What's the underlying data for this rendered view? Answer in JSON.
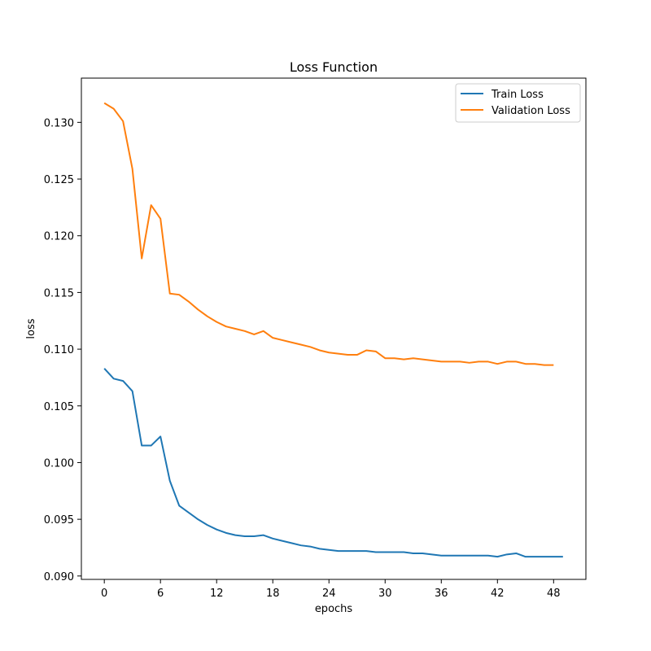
{
  "chart_data": {
    "type": "line",
    "title": "Loss Function",
    "xlabel": "epochs",
    "ylabel": "loss",
    "xlim": [
      -2.45,
      51.45
    ],
    "ylim": [
      0.0897,
      0.1339
    ],
    "xticks": [
      0,
      6,
      12,
      18,
      24,
      30,
      36,
      42,
      48
    ],
    "yticks": [
      0.09,
      0.095,
      0.1,
      0.105,
      0.11,
      0.115,
      0.12,
      0.125,
      0.13
    ],
    "ytick_labels": [
      "0.090",
      "0.095",
      "0.100",
      "0.105",
      "0.110",
      "0.115",
      "0.120",
      "0.125",
      "0.130"
    ],
    "grid": false,
    "legend_position": "top-right",
    "series": [
      {
        "name": "Train Loss",
        "color": "#1f77b4",
        "x": [
          0,
          1,
          2,
          3,
          4,
          5,
          6,
          7,
          8,
          9,
          10,
          11,
          12,
          13,
          14,
          15,
          16,
          17,
          18,
          19,
          20,
          21,
          22,
          23,
          24,
          25,
          26,
          27,
          28,
          29,
          30,
          31,
          32,
          33,
          34,
          35,
          36,
          37,
          38,
          39,
          40,
          41,
          42,
          43,
          44,
          45,
          46,
          47,
          48,
          49
        ],
        "values": [
          0.1083,
          0.1074,
          0.1072,
          0.1063,
          0.1015,
          0.1015,
          0.1023,
          0.0984,
          0.0962,
          0.0956,
          0.095,
          0.0945,
          0.0941,
          0.0938,
          0.0936,
          0.0935,
          0.0935,
          0.0936,
          0.0933,
          0.0931,
          0.0929,
          0.0927,
          0.0926,
          0.0924,
          0.0923,
          0.0922,
          0.0922,
          0.0922,
          0.0922,
          0.0921,
          0.0921,
          0.0921,
          0.0921,
          0.092,
          0.092,
          0.0919,
          0.0918,
          0.0918,
          0.0918,
          0.0918,
          0.0918,
          0.0918,
          0.0917,
          0.0919,
          0.092,
          0.0917,
          0.0917,
          0.0917,
          0.0917,
          0.0917
        ]
      },
      {
        "name": "Validation Loss",
        "color": "#ff7f0e",
        "x": [
          0,
          1,
          2,
          3,
          4,
          5,
          6,
          7,
          8,
          9,
          10,
          11,
          12,
          13,
          14,
          15,
          16,
          17,
          18,
          19,
          20,
          21,
          22,
          23,
          24,
          25,
          26,
          27,
          28,
          29,
          30,
          31,
          32,
          33,
          34,
          35,
          36,
          37,
          38,
          39,
          40,
          41,
          42,
          43,
          44,
          45,
          46,
          47,
          48
        ],
        "values": [
          0.1317,
          0.1312,
          0.1301,
          0.1259,
          0.118,
          0.1227,
          0.1215,
          0.1149,
          0.1148,
          0.1142,
          0.1135,
          0.1129,
          0.1124,
          0.112,
          0.1118,
          0.1116,
          0.1113,
          0.1116,
          0.111,
          0.1108,
          0.1106,
          0.1104,
          0.1102,
          0.1099,
          0.1097,
          0.1096,
          0.1095,
          0.1095,
          0.1099,
          0.1098,
          0.1092,
          0.1092,
          0.1091,
          0.1092,
          0.1091,
          0.109,
          0.1089,
          0.1089,
          0.1089,
          0.1088,
          0.1089,
          0.1089,
          0.1087,
          0.1089,
          0.1089,
          0.1087,
          0.1087,
          0.1086,
          0.1086
        ]
      }
    ]
  }
}
